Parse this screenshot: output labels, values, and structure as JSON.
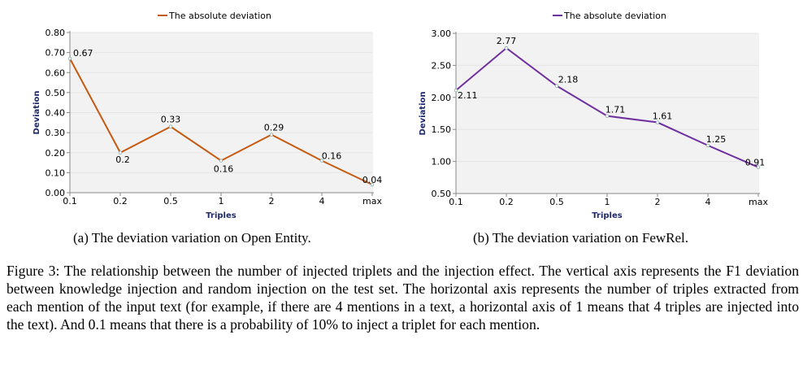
{
  "chart_data": [
    {
      "type": "line",
      "legend": "The absolute deviation",
      "legend_position": "top",
      "xlabel": "Triples",
      "ylabel": "Deviation",
      "categories": [
        "0.1",
        "0.2",
        "0.5",
        "1",
        "2",
        "4",
        "max"
      ],
      "values": [
        0.67,
        0.2,
        0.33,
        0.16,
        0.29,
        0.16,
        0.04
      ],
      "data_labels": [
        "0.67",
        "0.2",
        "0.33",
        "0.16",
        "0.29",
        "0.16",
        "0.04"
      ],
      "ylim": [
        0,
        0.8
      ],
      "yticks": [
        "0.00",
        "0.10",
        "0.20",
        "0.30",
        "0.40",
        "0.50",
        "0.60",
        "0.70",
        "0.80"
      ],
      "grid": true,
      "color": "#c55a11"
    },
    {
      "type": "line",
      "legend": "The absolute deviation",
      "legend_position": "top",
      "xlabel": "Triples",
      "ylabel": "Deviation",
      "categories": [
        "0.1",
        "0.2",
        "0.5",
        "1",
        "2",
        "4",
        "max"
      ],
      "values": [
        2.11,
        2.77,
        2.18,
        1.71,
        1.61,
        1.25,
        0.91
      ],
      "data_labels": [
        "2.11",
        "2.77",
        "2.18",
        "1.71",
        "1.61",
        "1.25",
        "0.91"
      ],
      "ylim": [
        0.5,
        3.0
      ],
      "yticks": [
        "0.50",
        "1.00",
        "1.50",
        "2.00",
        "2.50",
        "3.00"
      ],
      "grid": true,
      "color": "#7030a0"
    }
  ],
  "subcaptions": [
    "(a) The deviation variation on Open Entity.",
    "(b) The deviation variation on FewRel."
  ],
  "caption": "Figure 3: The relationship between the number of injected triplets and the injection effect. The vertical axis represents the F1 deviation between knowledge injection and random injection on the test set. The horizontal axis represents the number of triples extracted from each mention of the input text (for example, if there are 4 mentions in a text, a horizontal axis of 1 means that 4 triples are injected into the text). And 0.1 means that there is a probability of 10% to inject a triplet for each mention."
}
